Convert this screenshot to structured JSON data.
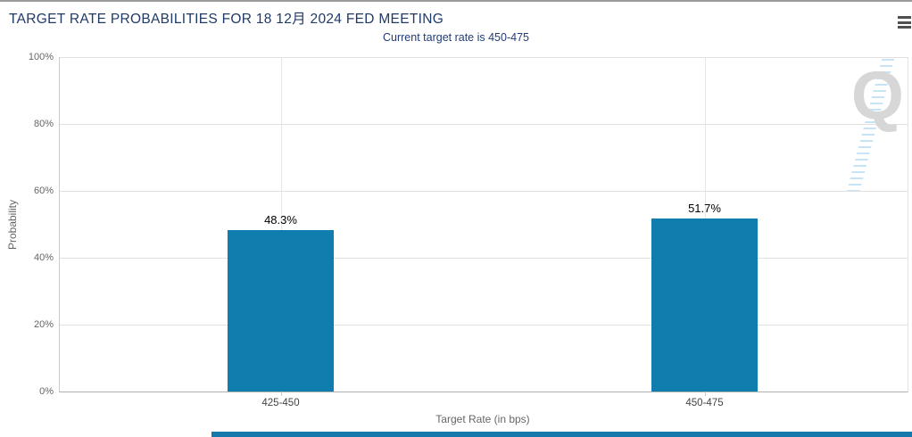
{
  "header": {
    "title": "TARGET RATE PROBABILITIES FOR 18 12月 2024 FED MEETING",
    "subtitle": "Current target rate is 450-475",
    "menu_icon": "hamburger-menu-icon"
  },
  "watermark": {
    "letter": "Q"
  },
  "colors": {
    "bar": "#0f7eae",
    "title_text": "#203a66",
    "subtitle_text": "#223c77",
    "grid_line": "#e0e0e0",
    "axis_line": "#b0b0b0"
  },
  "chart_data": {
    "type": "bar",
    "title": "TARGET RATE PROBABILITIES FOR 18 12月 2024 FED MEETING",
    "subtitle": "Current target rate is 450-475",
    "categories": [
      "425-450",
      "450-475"
    ],
    "values": [
      48.3,
      51.7
    ],
    "value_labels": [
      "48.3%",
      "51.7%"
    ],
    "xlabel": "Target Rate (in bps)",
    "ylabel": "Probability",
    "ylim": [
      0,
      100
    ],
    "yticks": [
      "0%",
      "20%",
      "40%",
      "60%",
      "80%",
      "100%"
    ],
    "grid": true,
    "legend": "none",
    "bar_color": "#0f7eae"
  }
}
